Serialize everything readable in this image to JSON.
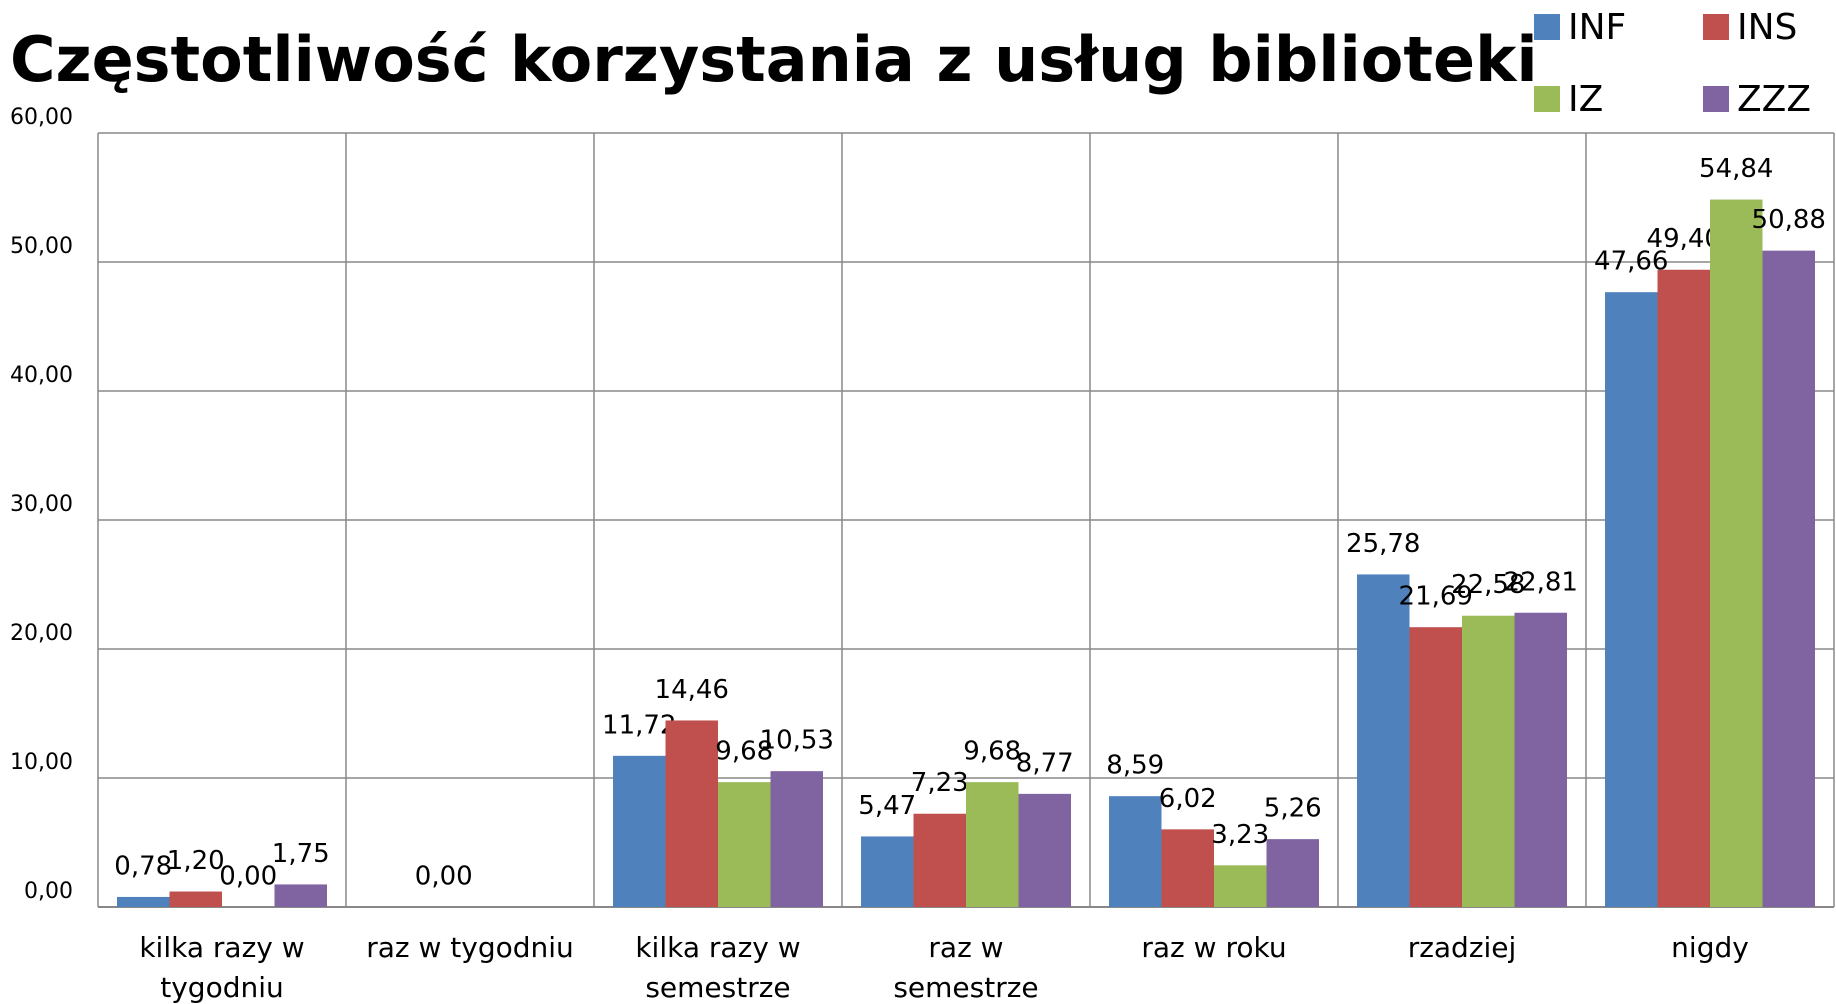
{
  "chart_data": {
    "type": "bar",
    "title": "Częstotliwość korzystania z usług biblioteki",
    "categories": [
      "kilka razy w tygodniu",
      "raz w tygodniu",
      "kilka razy w semestrze",
      "raz w semestrze",
      "raz w roku",
      "rzadziej",
      "nigdy"
    ],
    "series": [
      {
        "name": "INF",
        "color": "#4f81bd",
        "values": [
          0.78,
          null,
          11.72,
          5.47,
          8.59,
          25.78,
          47.66
        ],
        "value_labels": [
          "0,78",
          null,
          "11,72",
          "5,47",
          "8,59",
          "25,78",
          "47,66"
        ]
      },
      {
        "name": "INS",
        "color": "#c0504d",
        "values": [
          1.2,
          0,
          14.46,
          7.23,
          6.02,
          21.69,
          49.4
        ],
        "value_labels": [
          "1,20",
          "0,00",
          "14,46",
          "7,23",
          "6,02",
          "21,69",
          "49,40"
        ]
      },
      {
        "name": "IZ",
        "color": "#9bbb59",
        "values": [
          0,
          null,
          9.68,
          9.68,
          3.23,
          22.58,
          54.84
        ],
        "value_labels": [
          "0,00",
          null,
          "9,68",
          "9,68",
          "3,23",
          "22,58",
          "54,84"
        ]
      },
      {
        "name": "ZZZ",
        "color": "#8064a2",
        "values": [
          1.75,
          null,
          10.53,
          8.77,
          5.26,
          22.81,
          50.88
        ],
        "value_labels": [
          "1,75",
          null,
          "10,53",
          "8,77",
          "5,26",
          "22,81",
          "50,88"
        ]
      }
    ],
    "ylim": [
      0,
      60
    ],
    "yticks": [
      {
        "value": 0,
        "label": "0,00"
      },
      {
        "value": 10,
        "label": "10,00"
      },
      {
        "value": 20,
        "label": "20,00"
      },
      {
        "value": 30,
        "label": "30,00"
      },
      {
        "value": 40,
        "label": "40,00"
      },
      {
        "value": 50,
        "label": "50,00"
      },
      {
        "value": 60,
        "label": "60,00"
      }
    ],
    "grid": true,
    "legend": "top-right"
  }
}
